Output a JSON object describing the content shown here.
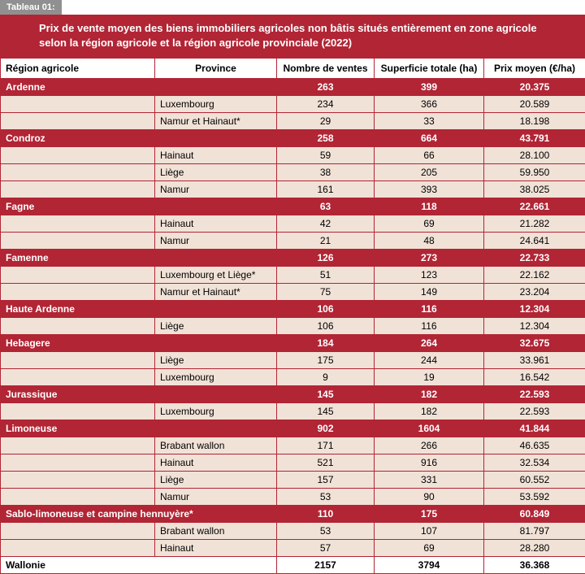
{
  "label": "Tableau 01:",
  "title_line1": "Prix de vente moyen des biens immobiliers agricoles non bâtis situés entièrement en zone agricole",
  "title_line2": "selon la région agricole et la région agricole provinciale (2022)",
  "columns": {
    "c1": "Région agricole",
    "c2": "Province",
    "c3": "Nombre de ventes",
    "c4": "Superficie totale (ha)",
    "c5": "Prix moyen (€/ha)"
  },
  "colors": {
    "header_red": "#b12535",
    "sub_bg": "#f1e2d7",
    "label_bg": "#909090",
    "white": "#ffffff",
    "black": "#000000"
  },
  "groups": [
    {
      "region": "Ardenne",
      "ventes": "263",
      "superficie": "399",
      "prix": "20.375",
      "subs": [
        {
          "province": "Luxembourg",
          "ventes": "234",
          "superficie": "366",
          "prix": "20.589"
        },
        {
          "province": "Namur et Hainaut*",
          "ventes": "29",
          "superficie": "33",
          "prix": "18.198"
        }
      ]
    },
    {
      "region": "Condroz",
      "ventes": "258",
      "superficie": "664",
      "prix": "43.791",
      "subs": [
        {
          "province": "Hainaut",
          "ventes": "59",
          "superficie": "66",
          "prix": "28.100"
        },
        {
          "province": "Liège",
          "ventes": "38",
          "superficie": "205",
          "prix": "59.950"
        },
        {
          "province": "Namur",
          "ventes": "161",
          "superficie": "393",
          "prix": "38.025"
        }
      ]
    },
    {
      "region": "Fagne",
      "ventes": "63",
      "superficie": "118",
      "prix": "22.661",
      "subs": [
        {
          "province": "Hainaut",
          "ventes": "42",
          "superficie": "69",
          "prix": "21.282"
        },
        {
          "province": "Namur",
          "ventes": "21",
          "superficie": "48",
          "prix": "24.641"
        }
      ]
    },
    {
      "region": "Famenne",
      "ventes": "126",
      "superficie": "273",
      "prix": "22.733",
      "subs": [
        {
          "province": "Luxembourg et Liège*",
          "ventes": "51",
          "superficie": "123",
          "prix": "22.162"
        },
        {
          "province": "Namur et Hainaut*",
          "ventes": "75",
          "superficie": "149",
          "prix": "23.204"
        }
      ]
    },
    {
      "region": "Haute Ardenne",
      "ventes": "106",
      "superficie": "116",
      "prix": "12.304",
      "subs": [
        {
          "province": "Liège",
          "ventes": "106",
          "superficie": "116",
          "prix": "12.304"
        }
      ]
    },
    {
      "region": "Hebagere",
      "ventes": "184",
      "superficie": "264",
      "prix": "32.675",
      "subs": [
        {
          "province": "Liège",
          "ventes": "175",
          "superficie": "244",
          "prix": "33.961"
        },
        {
          "province": "Luxembourg",
          "ventes": "9",
          "superficie": "19",
          "prix": "16.542"
        }
      ]
    },
    {
      "region": "Jurassique",
      "ventes": "145",
      "superficie": "182",
      "prix": "22.593",
      "subs": [
        {
          "province": "Luxembourg",
          "ventes": "145",
          "superficie": "182",
          "prix": "22.593"
        }
      ]
    },
    {
      "region": "Limoneuse",
      "ventes": "902",
      "superficie": "1604",
      "prix": "41.844",
      "subs": [
        {
          "province": "Brabant wallon",
          "ventes": "171",
          "superficie": "266",
          "prix": "46.635"
        },
        {
          "province": "Hainaut",
          "ventes": "521",
          "superficie": "916",
          "prix": "32.534"
        },
        {
          "province": "Liège",
          "ventes": "157",
          "superficie": "331",
          "prix": "60.552"
        },
        {
          "province": "Namur",
          "ventes": "53",
          "superficie": "90",
          "prix": "53.592"
        }
      ]
    },
    {
      "region": "Sablo-limoneuse et campine hennuyère*",
      "ventes": "110",
      "superficie": "175",
      "prix": "60.849",
      "region_span": true,
      "subs": [
        {
          "province": "Brabant wallon",
          "ventes": "53",
          "superficie": "107",
          "prix": "81.797"
        },
        {
          "province": "Hainaut",
          "ventes": "57",
          "superficie": "69",
          "prix": "28.280"
        }
      ]
    }
  ],
  "total": {
    "region": "Wallonie",
    "ventes": "2157",
    "superficie": "3794",
    "prix": "36.368"
  }
}
